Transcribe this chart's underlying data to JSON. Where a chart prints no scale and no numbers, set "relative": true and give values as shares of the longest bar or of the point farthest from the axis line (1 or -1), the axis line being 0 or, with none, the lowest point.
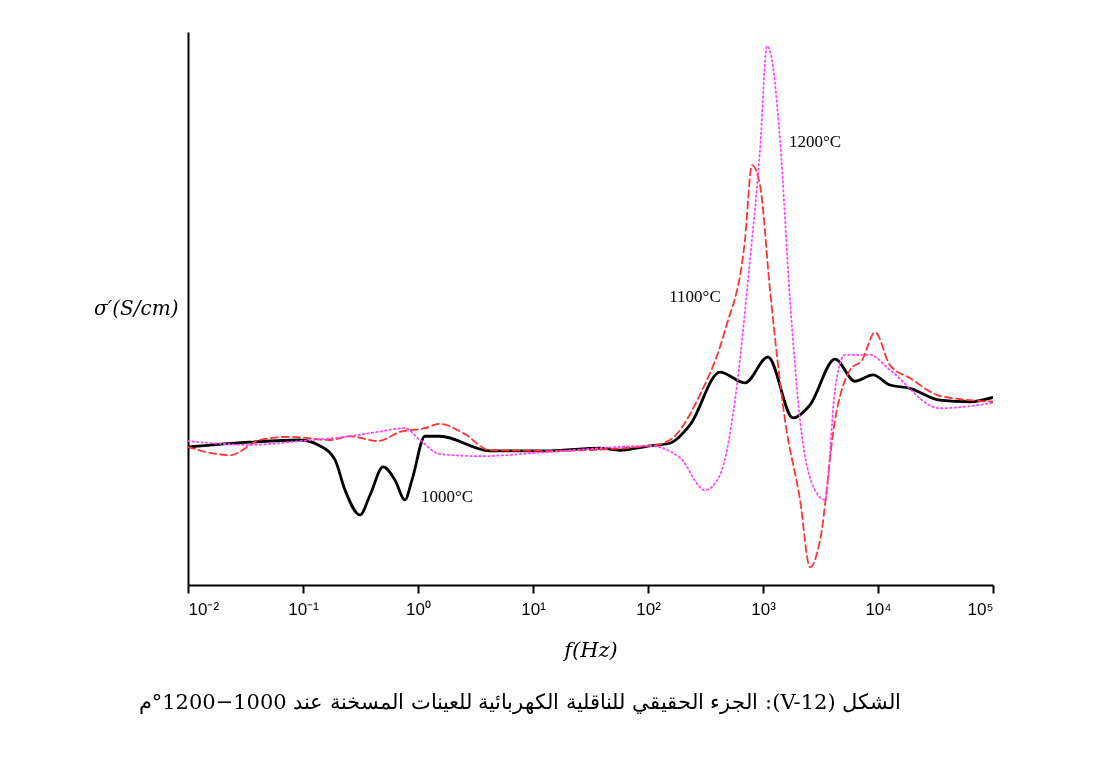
{
  "chart_data": {
    "type": "line",
    "relative": true,
    "log": "x",
    "xlabel": "f(Hz)",
    "ylabel": "σ′(S/cm)",
    "xlim": [
      0.01,
      100000
    ],
    "xticks": [
      {
        "value": 0.01,
        "label": "10⁻²"
      },
      {
        "value": 0.1,
        "label": "10⁻¹"
      },
      {
        "value": 1,
        "label": "10⁰"
      },
      {
        "value": 10,
        "label": "10¹"
      },
      {
        "value": 100,
        "label": "10²"
      },
      {
        "value": 1000,
        "label": "10³"
      },
      {
        "value": 10000,
        "label": "10⁴"
      },
      {
        "value": 100000,
        "label": "10⁵"
      }
    ],
    "grid": false,
    "series": [
      {
        "name": "1000°C",
        "color": "#000000",
        "line_style": "solid",
        "x": [
          0.01,
          0.0346,
          0.094,
          0.141,
          0.19,
          0.232,
          0.313,
          0.383,
          0.497,
          0.63,
          0.77,
          0.887,
          1.15,
          1.55,
          4.2,
          14,
          38,
          57,
          104,
          155,
          232,
          423,
          697,
          1104,
          1824,
          2564,
          4227,
          6310,
          9057,
          12700,
          18970,
          34590,
          63100,
          100000
        ],
        "values": [
          0.256,
          0.265,
          0.269,
          0.258,
          0.232,
          0.176,
          0.13,
          0.167,
          0.219,
          0.195,
          0.158,
          0.195,
          0.276,
          0.276,
          0.249,
          0.249,
          0.254,
          0.25,
          0.258,
          0.263,
          0.297,
          0.395,
          0.375,
          0.423,
          0.31,
          0.334,
          0.419,
          0.378,
          0.39,
          0.371,
          0.365,
          0.343,
          0.34,
          0.348
        ]
      },
      {
        "name": "1100°C",
        "color": "#ff3333",
        "line_style": "dashed",
        "x": [
          0.01,
          0.0232,
          0.0423,
          0.077,
          0.172,
          0.256,
          0.449,
          0.697,
          1.15,
          1.55,
          2.56,
          4.2,
          14,
          104,
          155,
          283,
          468,
          697,
          802,
          942,
          1151,
          1553,
          2099,
          2564,
          3135,
          4227,
          5715,
          7262,
          9420,
          12700,
          18970,
          34590,
          100000
        ],
        "values": [
          0.256,
          0.241,
          0.269,
          0.275,
          0.269,
          0.276,
          0.267,
          0.284,
          0.291,
          0.299,
          0.28,
          0.25,
          0.249,
          0.258,
          0.269,
          0.353,
          0.473,
          0.64,
          0.779,
          0.742,
          0.547,
          0.306,
          0.158,
          0.033,
          0.083,
          0.306,
          0.399,
          0.417,
          0.469,
          0.408,
          0.384,
          0.351,
          0.34
        ]
      },
      {
        "name": "1200°C",
        "color": "#ff44ff",
        "line_style": "dotted",
        "x": [
          0.01,
          0.0346,
          0.094,
          0.256,
          0.449,
          0.77,
          1.04,
          1.55,
          3.46,
          14,
          104,
          190,
          313,
          423,
          571,
          771,
          942,
          1084,
          1197,
          1406,
          1718,
          2099,
          2831,
          3459,
          4227,
          5164,
          8511,
          12700,
          34590,
          100000
        ],
        "values": [
          0.267,
          0.26,
          0.267,
          0.276,
          0.284,
          0.291,
          0.269,
          0.243,
          0.239,
          0.247,
          0.258,
          0.236,
          0.176,
          0.204,
          0.343,
          0.603,
          0.807,
          1.0,
          0.974,
          0.826,
          0.529,
          0.306,
          0.176,
          0.158,
          0.362,
          0.427,
          0.427,
          0.399,
          0.328,
          0.338
        ]
      }
    ],
    "annotations": [
      "الشكل (V-12): الجزء الحقيقي للناقلية الكهربائية للعينات المسخنة عند 1000−1200°م"
    ]
  }
}
